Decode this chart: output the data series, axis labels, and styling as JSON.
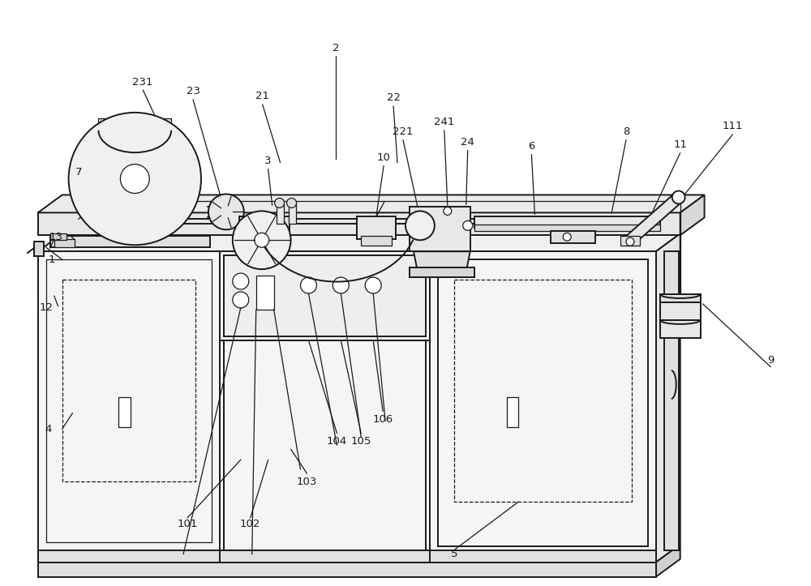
{
  "bg": "#ffffff",
  "lc": "#1a1a1a",
  "lw": 1.4,
  "tlw": 0.9,
  "fs": 9.5,
  "figw": 10.0,
  "figh": 7.23
}
